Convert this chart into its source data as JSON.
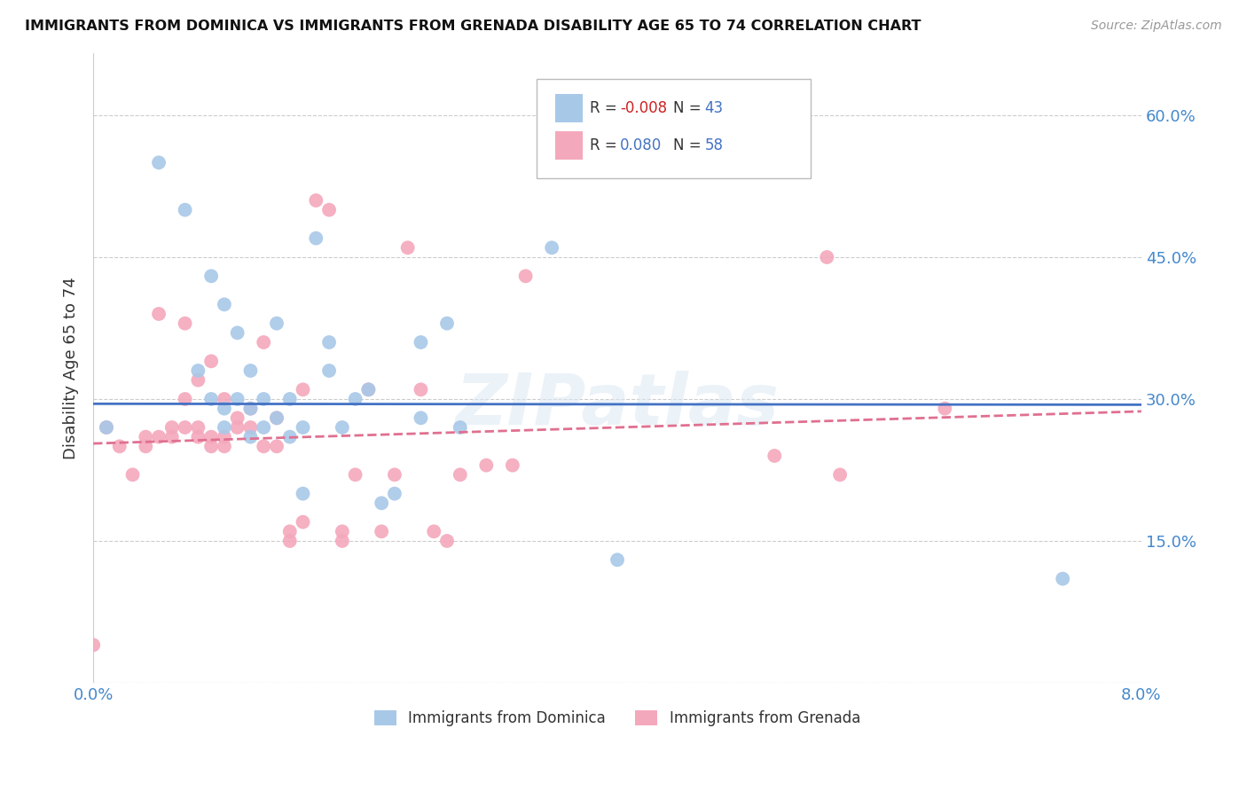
{
  "title": "IMMIGRANTS FROM DOMINICA VS IMMIGRANTS FROM GRENADA DISABILITY AGE 65 TO 74 CORRELATION CHART",
  "source": "Source: ZipAtlas.com",
  "ylabel": "Disability Age 65 to 74",
  "xlim": [
    0.0,
    0.08
  ],
  "ylim": [
    0.0,
    0.666
  ],
  "xticks": [
    0.0,
    0.02,
    0.04,
    0.06,
    0.08
  ],
  "xticklabels": [
    "0.0%",
    "",
    "",
    "",
    "8.0%"
  ],
  "yticks": [
    0.0,
    0.15,
    0.3,
    0.45,
    0.6
  ],
  "yticklabels_right": [
    "",
    "15.0%",
    "30.0%",
    "45.0%",
    "60.0%"
  ],
  "color_dominica": "#a8c8e8",
  "color_grenada": "#f4a8bc",
  "trend_color_dominica": "#4472c4",
  "trend_color_grenada": "#e07090",
  "dominica_x": [
    0.001,
    0.005,
    0.007,
    0.008,
    0.009,
    0.009,
    0.01,
    0.01,
    0.01,
    0.011,
    0.011,
    0.012,
    0.012,
    0.012,
    0.013,
    0.013,
    0.014,
    0.014,
    0.015,
    0.015,
    0.016,
    0.016,
    0.017,
    0.018,
    0.018,
    0.019,
    0.02,
    0.021,
    0.022,
    0.023,
    0.025,
    0.025,
    0.027,
    0.028,
    0.035,
    0.04,
    0.074
  ],
  "dominica_y": [
    0.27,
    0.55,
    0.5,
    0.33,
    0.3,
    0.43,
    0.27,
    0.4,
    0.29,
    0.3,
    0.37,
    0.26,
    0.29,
    0.33,
    0.27,
    0.3,
    0.28,
    0.38,
    0.26,
    0.3,
    0.27,
    0.2,
    0.47,
    0.33,
    0.36,
    0.27,
    0.3,
    0.31,
    0.19,
    0.2,
    0.36,
    0.28,
    0.38,
    0.27,
    0.46,
    0.13,
    0.11
  ],
  "grenada_x": [
    0.0,
    0.001,
    0.002,
    0.003,
    0.004,
    0.004,
    0.005,
    0.005,
    0.006,
    0.006,
    0.007,
    0.007,
    0.007,
    0.008,
    0.008,
    0.008,
    0.009,
    0.009,
    0.009,
    0.01,
    0.01,
    0.01,
    0.011,
    0.011,
    0.012,
    0.012,
    0.013,
    0.013,
    0.014,
    0.014,
    0.015,
    0.015,
    0.016,
    0.016,
    0.017,
    0.018,
    0.019,
    0.019,
    0.02,
    0.021,
    0.022,
    0.023,
    0.024,
    0.025,
    0.026,
    0.027,
    0.028,
    0.03,
    0.032,
    0.033,
    0.052,
    0.056,
    0.057,
    0.065
  ],
  "grenada_y": [
    0.04,
    0.27,
    0.25,
    0.22,
    0.26,
    0.25,
    0.26,
    0.39,
    0.27,
    0.26,
    0.27,
    0.3,
    0.38,
    0.27,
    0.26,
    0.32,
    0.25,
    0.26,
    0.34,
    0.26,
    0.25,
    0.3,
    0.27,
    0.28,
    0.29,
    0.27,
    0.25,
    0.36,
    0.25,
    0.28,
    0.16,
    0.15,
    0.31,
    0.17,
    0.51,
    0.5,
    0.16,
    0.15,
    0.22,
    0.31,
    0.16,
    0.22,
    0.46,
    0.31,
    0.16,
    0.15,
    0.22,
    0.23,
    0.23,
    0.43,
    0.24,
    0.45,
    0.22,
    0.29
  ],
  "dom_trend_x": [
    0.0,
    0.08
  ],
  "dom_trend_y": [
    0.295,
    0.294
  ],
  "gren_trend_x": [
    0.0,
    0.08
  ],
  "gren_trend_y": [
    0.253,
    0.287
  ]
}
